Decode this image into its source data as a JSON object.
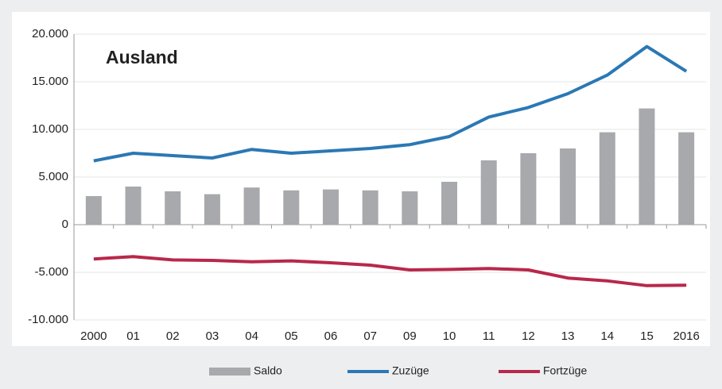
{
  "chart_data": {
    "type": "bar-line",
    "title": "Ausland",
    "categories": [
      "2000",
      "01",
      "02",
      "03",
      "04",
      "05",
      "06",
      "07",
      "09",
      "10",
      "11",
      "12",
      "13",
      "14",
      "15",
      "2016"
    ],
    "series": [
      {
        "name": "Saldo",
        "type": "bar",
        "color": "#a7a9ac",
        "values": [
          3000,
          4000,
          3500,
          3200,
          3900,
          3600,
          3700,
          3600,
          3500,
          4500,
          6750,
          7500,
          8000,
          9700,
          12200,
          9700
        ]
      },
      {
        "name": "Zuzüge",
        "type": "line",
        "color": "#2b78b4",
        "values": [
          6700,
          7500,
          7250,
          7000,
          7900,
          7500,
          7750,
          8000,
          8400,
          9250,
          11300,
          12300,
          13750,
          15700,
          18700,
          16100
        ]
      },
      {
        "name": "Fortzüge",
        "type": "line",
        "color": "#b8284a",
        "values": [
          -3600,
          -3350,
          -3700,
          -3750,
          -3900,
          -3800,
          -4000,
          -4250,
          -4750,
          -4700,
          -4600,
          -4750,
          -5600,
          -5900,
          -6400,
          -6350
        ]
      }
    ],
    "ylim": [
      -10000,
      20000
    ],
    "yticks": [
      {
        "value": -10000,
        "label": "-10.000"
      },
      {
        "value": -5000,
        "label": "-5.000"
      },
      0,
      {
        "value": 5000,
        "label": "5.000"
      },
      {
        "value": 10000,
        "label": "10.000"
      },
      {
        "value": 15000,
        "label": "15.000"
      },
      {
        "value": 20000,
        "label": "20.000"
      }
    ],
    "grid": true,
    "legend": "bottom"
  }
}
